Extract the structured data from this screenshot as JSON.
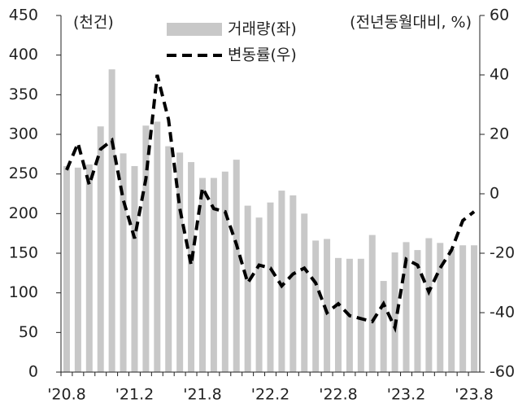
{
  "chart_data": {
    "type": "bar_line",
    "unit_left": "(천건)",
    "unit_right": "(전년동월대비, %)",
    "categories": [
      "'20.8",
      null,
      null,
      null,
      null,
      null,
      "'21.2",
      null,
      null,
      null,
      null,
      null,
      "'21.8",
      null,
      null,
      null,
      null,
      null,
      "'22.2",
      null,
      null,
      null,
      null,
      null,
      "'22.8",
      null,
      null,
      null,
      null,
      null,
      "'23.2",
      null,
      null,
      null,
      null,
      null,
      "'23.8"
    ],
    "series": [
      {
        "name": "거래량(좌)",
        "color": "#c8c8c8",
        "axis": "y",
        "values": [
          260,
          258,
          262,
          310,
          382,
          276,
          260,
          311,
          316,
          285,
          277,
          265,
          245,
          245,
          253,
          268,
          210,
          195,
          214,
          229,
          223,
          200,
          166,
          168,
          144,
          143,
          143,
          173,
          115,
          151,
          164,
          154,
          169,
          163,
          155,
          160,
          160
        ]
      },
      {
        "name": "변동률(우)",
        "color": "#000000",
        "axis": "y2",
        "values": [
          8,
          17,
          3,
          15,
          18,
          -2,
          -15,
          5,
          40,
          25,
          -5,
          -24,
          2,
          -5,
          -6,
          -17,
          -30,
          -24,
          -25,
          -31,
          -27,
          -25,
          -30,
          -40,
          -37,
          -41,
          -42,
          -43,
          -37,
          -45,
          -22,
          -24,
          -33,
          -25,
          -19,
          -9,
          -6
        ]
      }
    ],
    "ylim": [
      0,
      450
    ],
    "yticks": [
      0,
      50,
      100,
      150,
      200,
      250,
      300,
      350,
      400,
      450
    ],
    "y2lim": [
      -60,
      60
    ],
    "y2ticks": [
      -60,
      -40,
      -20,
      0,
      20,
      40,
      60
    ]
  }
}
